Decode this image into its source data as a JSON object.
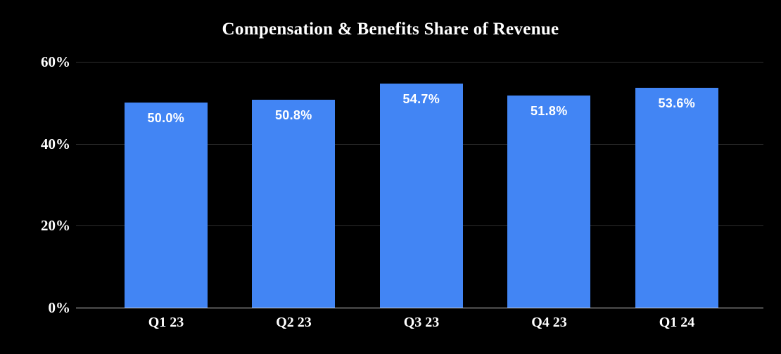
{
  "chart_data": {
    "type": "bar",
    "title": "Compensation & Benefits Share of Revenue",
    "categories": [
      "Q1 23",
      "Q2 23",
      "Q3 23",
      "Q4 23",
      "Q1 24"
    ],
    "values": [
      50.0,
      50.8,
      54.7,
      51.8,
      53.6
    ],
    "value_labels": [
      "50.0%",
      "50.8%",
      "54.7%",
      "51.8%",
      "53.6%"
    ],
    "xlabel": "",
    "ylabel": "",
    "ylim": [
      0,
      60
    ],
    "y_ticks": [
      {
        "value": 0,
        "label": "0%"
      },
      {
        "value": 20,
        "label": "20%"
      },
      {
        "value": 40,
        "label": "40%"
      },
      {
        "value": 60,
        "label": "60%"
      }
    ],
    "grid": "horizontal",
    "legend": "none",
    "colors": {
      "background": "#000000",
      "bar": "#4285F4",
      "gridline": "#2e2e2e",
      "baseline": "#d4d4d4",
      "text": "#ffffff"
    }
  }
}
